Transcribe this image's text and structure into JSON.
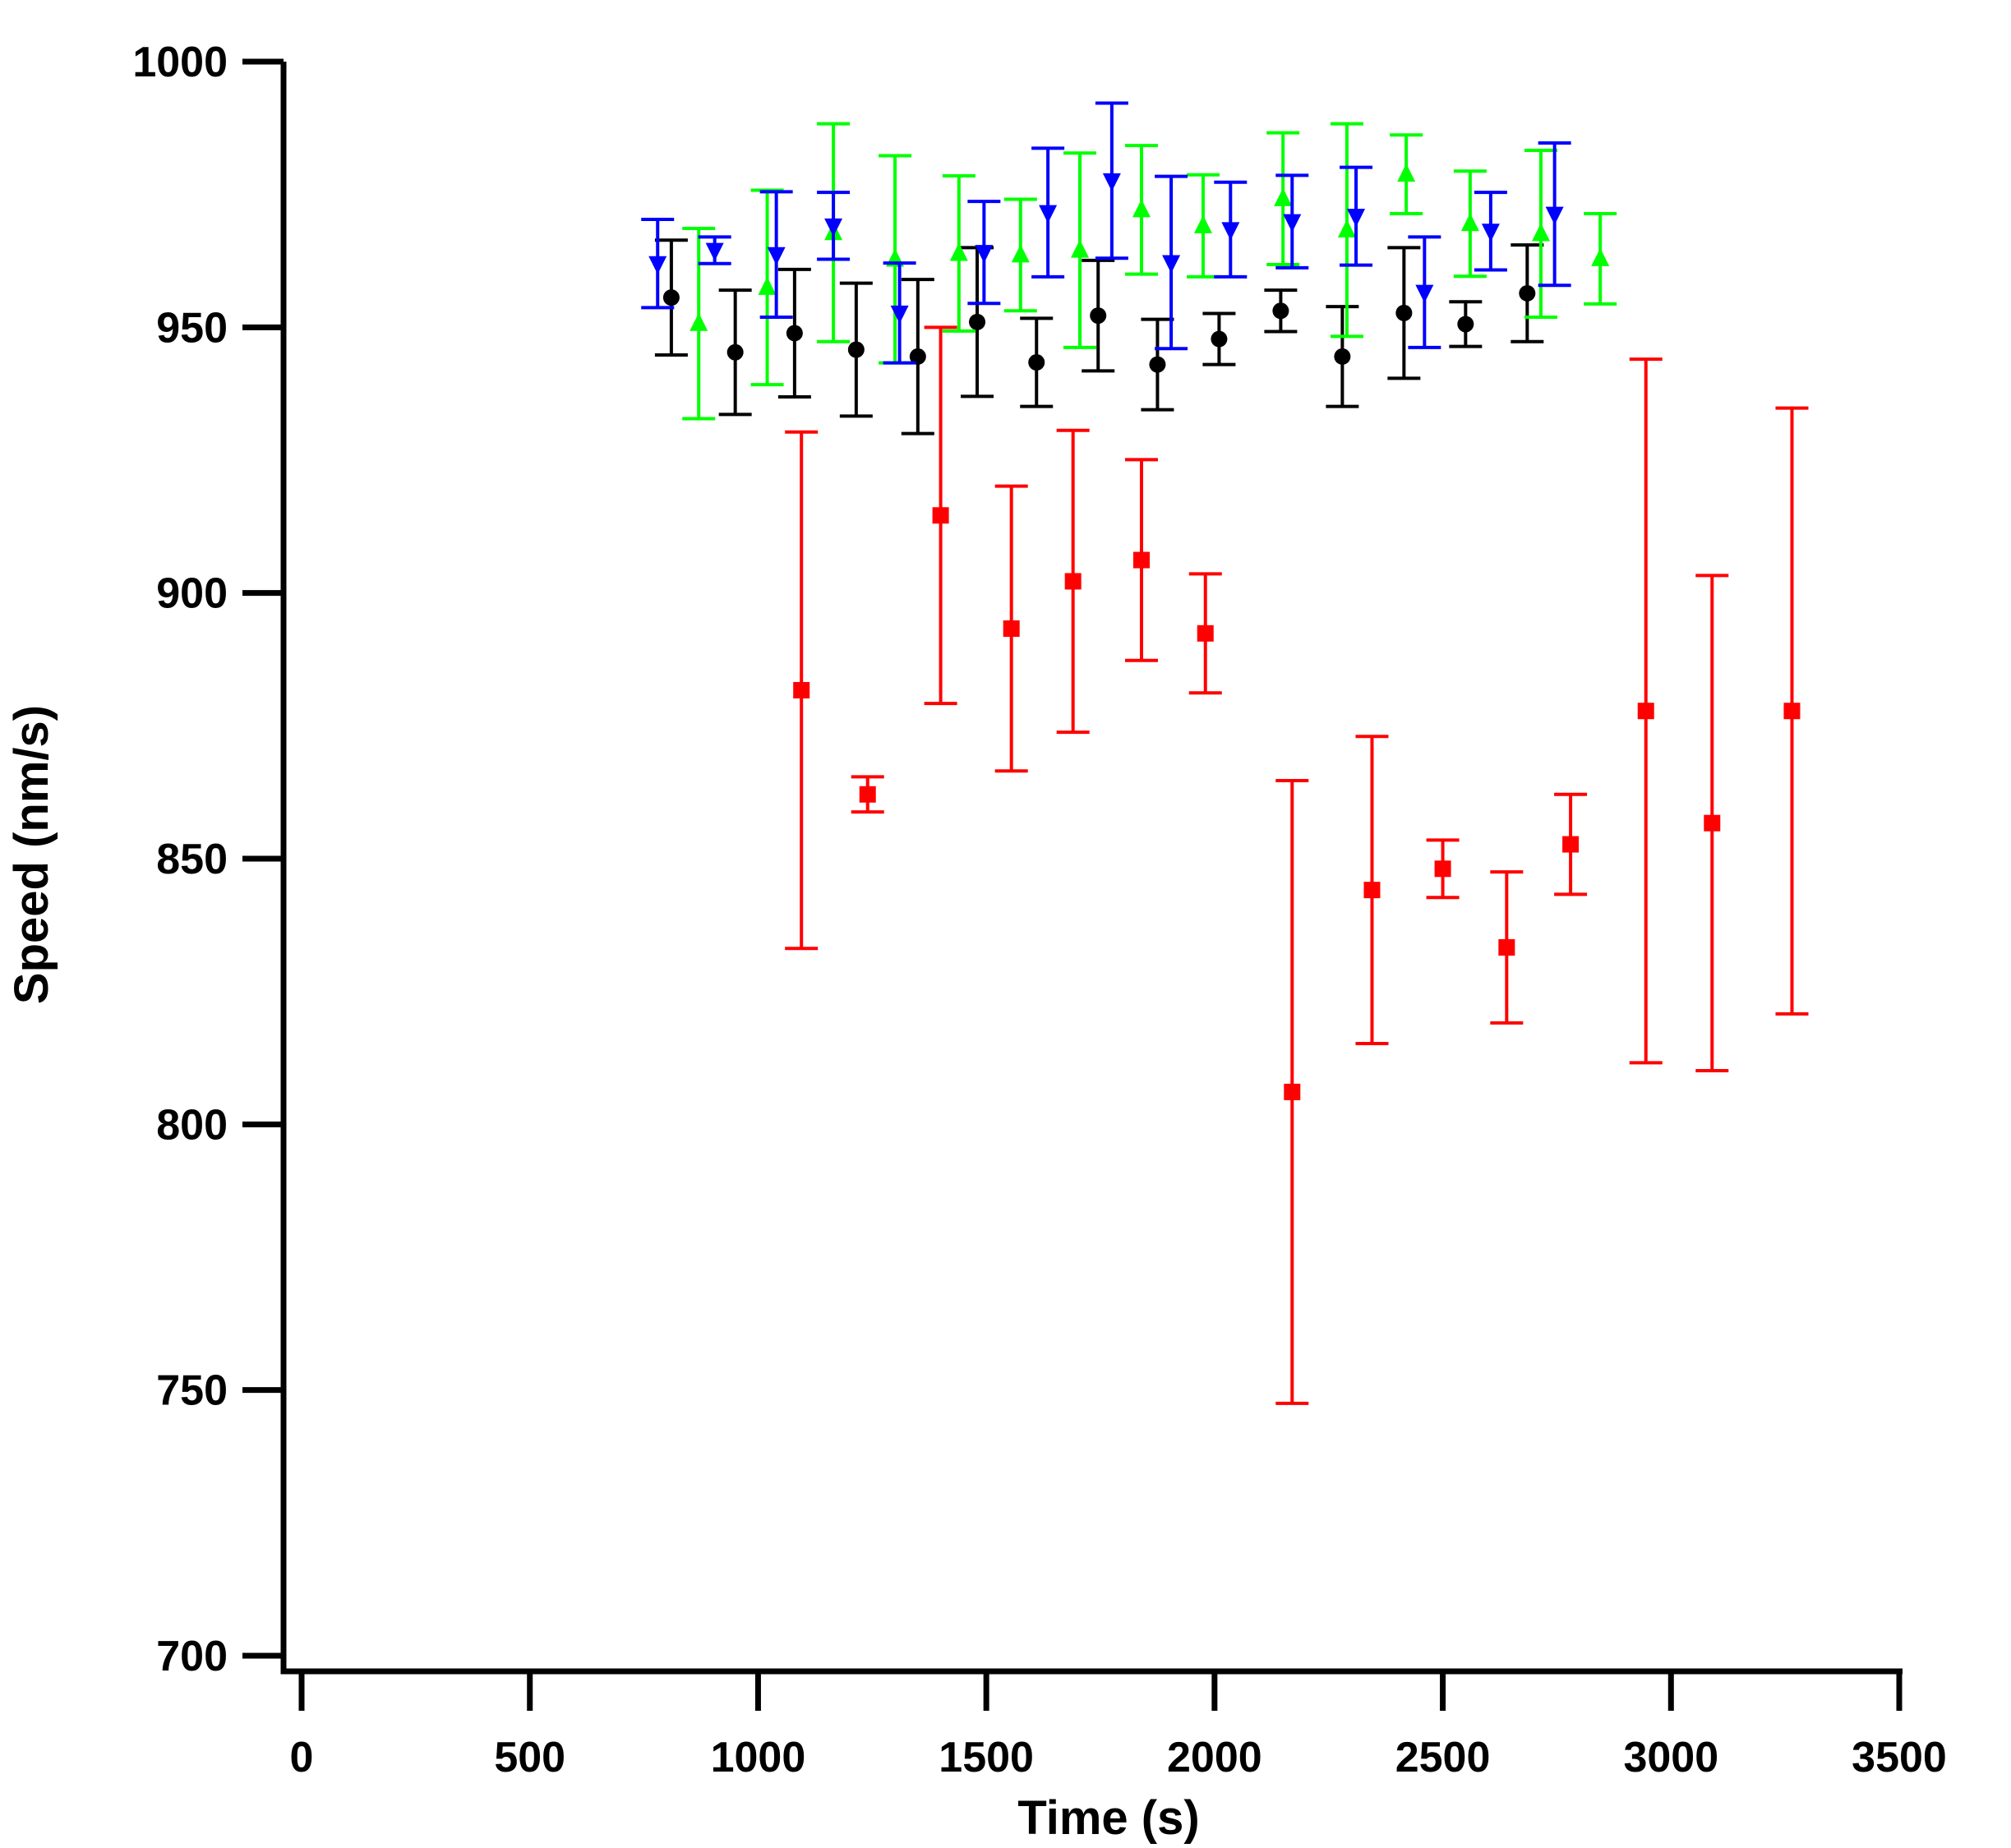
{
  "chart_data": {
    "type": "scatter",
    "title": "",
    "xlabel": "Time (s)",
    "ylabel": "Speed (nm/s)",
    "xlim": [
      0,
      3500
    ],
    "ylim": [
      700,
      1000
    ],
    "xticks": [
      "0",
      "500",
      "1000",
      "1500",
      "2000",
      "2500",
      "3000",
      "3500"
    ],
    "yticks": [
      "700",
      "750",
      "800",
      "850",
      "900",
      "950",
      "1000"
    ],
    "grid": false,
    "legend": "none",
    "error_bars": true,
    "series": [
      {
        "marker": "circle",
        "color": "#000000",
        "points": [
          {
            "x": 810,
            "y": 955.6,
            "err": 10.8
          },
          {
            "x": 950,
            "y": 945.3,
            "err": 11.7
          },
          {
            "x": 1080,
            "y": 948.9,
            "err": 12.0
          },
          {
            "x": 1215,
            "y": 945.8,
            "err": 12.5
          },
          {
            "x": 1350,
            "y": 944.5,
            "err": 14.5
          },
          {
            "x": 1480,
            "y": 951.0,
            "err": 14.0
          },
          {
            "x": 1610,
            "y": 943.4,
            "err": 8.3
          },
          {
            "x": 1745,
            "y": 952.2,
            "err": 10.4
          },
          {
            "x": 1875,
            "y": 943.0,
            "err": 8.5
          },
          {
            "x": 2010,
            "y": 947.8,
            "err": 4.8
          },
          {
            "x": 2145,
            "y": 953.1,
            "err": 3.9
          },
          {
            "x": 2280,
            "y": 944.5,
            "err": 9.4
          },
          {
            "x": 2415,
            "y": 952.7,
            "err": 12.3
          },
          {
            "x": 2550,
            "y": 950.6,
            "err": 4.2
          },
          {
            "x": 2685,
            "y": 956.4,
            "err": 9.1
          }
        ]
      },
      {
        "marker": "square",
        "color": "#ff0000",
        "points": [
          {
            "x": 1095,
            "y": 881.7,
            "err": 48.6
          },
          {
            "x": 1240,
            "y": 862.1,
            "err": 3.3
          },
          {
            "x": 1400,
            "y": 914.6,
            "err": 35.4
          },
          {
            "x": 1555,
            "y": 893.3,
            "err": 26.8
          },
          {
            "x": 1690,
            "y": 902.2,
            "err": 28.4
          },
          {
            "x": 1840,
            "y": 906.2,
            "err": 18.9
          },
          {
            "x": 1980,
            "y": 892.4,
            "err": 11.2
          },
          {
            "x": 2170,
            "y": 806.1,
            "err": 58.6
          },
          {
            "x": 2345,
            "y": 844.1,
            "err": 28.9
          },
          {
            "x": 2500,
            "y": 848.1,
            "err": 5.4
          },
          {
            "x": 2640,
            "y": 833.3,
            "err": 14.2
          },
          {
            "x": 2780,
            "y": 852.7,
            "err": 9.4
          },
          {
            "x": 2945,
            "y": 877.8,
            "err": 66.2
          },
          {
            "x": 3090,
            "y": 856.7,
            "err": 46.6
          },
          {
            "x": 3265,
            "y": 877.8,
            "err": 57.0
          }
        ]
      },
      {
        "marker": "triangle-up",
        "color": "#00ff00",
        "points": [
          {
            "x": 870,
            "y": 950.7,
            "err": 17.9
          },
          {
            "x": 1020,
            "y": 957.5,
            "err": 18.3
          },
          {
            "x": 1165,
            "y": 967.8,
            "err": 20.5
          },
          {
            "x": 1300,
            "y": 962.8,
            "err": 19.5
          },
          {
            "x": 1440,
            "y": 963.9,
            "err": 14.6
          },
          {
            "x": 1575,
            "y": 963.6,
            "err": 10.5
          },
          {
            "x": 1705,
            "y": 964.5,
            "err": 18.3
          },
          {
            "x": 1840,
            "y": 972.1,
            "err": 12.1
          },
          {
            "x": 1975,
            "y": 969.1,
            "err": 9.6
          },
          {
            "x": 2150,
            "y": 974.2,
            "err": 12.4
          },
          {
            "x": 2290,
            "y": 968.3,
            "err": 20.0
          },
          {
            "x": 2420,
            "y": 978.8,
            "err": 7.4
          },
          {
            "x": 2560,
            "y": 969.5,
            "err": 9.9
          },
          {
            "x": 2715,
            "y": 967.6,
            "err": 15.7
          },
          {
            "x": 2845,
            "y": 962.9,
            "err": 8.5
          }
        ]
      },
      {
        "marker": "triangle-down",
        "color": "#0000ff",
        "points": [
          {
            "x": 780,
            "y": 962.0,
            "err": 8.3
          },
          {
            "x": 905,
            "y": 964.5,
            "err": 2.5
          },
          {
            "x": 1040,
            "y": 963.7,
            "err": 11.8
          },
          {
            "x": 1165,
            "y": 969.1,
            "err": 6.3
          },
          {
            "x": 1310,
            "y": 952.7,
            "err": 9.4
          },
          {
            "x": 1495,
            "y": 964.1,
            "err": 9.6
          },
          {
            "x": 1635,
            "y": 971.6,
            "err": 12.1
          },
          {
            "x": 1775,
            "y": 977.6,
            "err": 14.6
          },
          {
            "x": 1905,
            "y": 962.2,
            "err": 16.2
          },
          {
            "x": 2035,
            "y": 968.4,
            "err": 8.9
          },
          {
            "x": 2170,
            "y": 969.9,
            "err": 8.7
          },
          {
            "x": 2310,
            "y": 970.9,
            "err": 9.2
          },
          {
            "x": 2460,
            "y": 956.6,
            "err": 10.4
          },
          {
            "x": 2605,
            "y": 968.1,
            "err": 7.3
          },
          {
            "x": 2745,
            "y": 971.3,
            "err": 13.4
          }
        ]
      }
    ]
  }
}
